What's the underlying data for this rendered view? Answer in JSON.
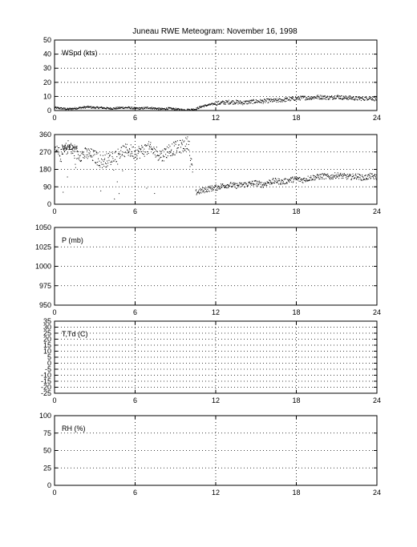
{
  "title": "Juneau RWE Meteogram:  November 16, 1998",
  "chart_data": [
    {
      "type": "scatter",
      "label": "WSpd (kts)",
      "xlim": [
        0,
        24
      ],
      "ylim": [
        0,
        50
      ],
      "xticks": [
        0,
        6,
        12,
        18,
        24
      ],
      "yticks": [
        0,
        10,
        20,
        30,
        40,
        50
      ],
      "grid": true,
      "series": [
        {
          "x": [
            0.0,
            0.5,
            1.0,
            1.5,
            2.0,
            2.5,
            3.0,
            3.5,
            4.0,
            4.5,
            5.0,
            5.5,
            6.0,
            6.5,
            7.0,
            7.5,
            8.0,
            8.5,
            9.0,
            9.5,
            10.0,
            10.5,
            11.0,
            11.5,
            12.0,
            12.5,
            13.0,
            13.5,
            14.0,
            14.5,
            15.0,
            15.5,
            16.0,
            16.5,
            17.0,
            17.5,
            18.0,
            18.5,
            19.0,
            19.5,
            20.0,
            20.5,
            21.0,
            21.5,
            22.0,
            22.5,
            23.0,
            23.5,
            24.0
          ],
          "y": [
            2,
            1.5,
            1,
            1.5,
            2,
            2.5,
            2,
            2,
            1.5,
            1.5,
            2,
            2,
            1.5,
            1.5,
            2,
            1.5,
            1,
            1.5,
            1,
            0.5,
            0.5,
            1,
            3,
            4,
            5,
            5.5,
            6,
            6,
            5.5,
            6,
            6.5,
            6.5,
            7,
            7,
            7.5,
            8,
            8.5,
            9,
            9,
            9.5,
            9.5,
            9,
            10,
            9,
            9,
            8.5,
            8.5,
            9,
            8
          ]
        }
      ]
    },
    {
      "type": "scatter",
      "label": "WDir",
      "xlim": [
        0,
        24
      ],
      "ylim": [
        0,
        360
      ],
      "xticks": [
        0,
        6,
        12,
        18,
        24
      ],
      "yticks": [
        0,
        90,
        180,
        270,
        360
      ],
      "grid": true,
      "series": [
        {
          "x": [
            0.0,
            0.5,
            1.0,
            1.5,
            2.0,
            2.5,
            3.0,
            3.5,
            4.0,
            4.5,
            5.0,
            5.5,
            6.0,
            6.5,
            7.0,
            7.5,
            8.0,
            8.5,
            9.0,
            9.5,
            10.0,
            10.5,
            11.0,
            11.5,
            12.0,
            12.5,
            13.0,
            13.5,
            14.0,
            14.5,
            15.0,
            15.5,
            16.0,
            16.5,
            17.0,
            17.5,
            18.0,
            18.5,
            19.0,
            19.5,
            20.0,
            20.5,
            21.0,
            21.5,
            22.0,
            22.5,
            23.0,
            23.5,
            24.0
          ],
          "y": [
            280,
            250,
            300,
            265,
            255,
            260,
            245,
            220,
            230,
            250,
            270,
            280,
            265,
            275,
            290,
            270,
            250,
            280,
            290,
            300,
            320,
            60,
            70,
            80,
            85,
            95,
            100,
            95,
            100,
            105,
            110,
            100,
            115,
            120,
            115,
            125,
            130,
            125,
            135,
            140,
            145,
            140,
            150,
            145,
            140,
            145,
            135,
            145,
            140
          ]
        }
      ]
    },
    {
      "type": "scatter",
      "label": "P (mb)",
      "xlim": [
        0,
        24
      ],
      "ylim": [
        950,
        1050
      ],
      "xticks": [
        0,
        6,
        12,
        18,
        24
      ],
      "yticks": [
        950,
        975,
        1000,
        1025,
        1050
      ],
      "grid": true,
      "series": []
    },
    {
      "type": "scatter",
      "label": "T,Td (C)",
      "xlim": [
        0,
        24
      ],
      "ylim": [
        -25,
        35
      ],
      "xticks": [
        0,
        6,
        12,
        18,
        24
      ],
      "yticks": [
        -25,
        -15,
        -5,
        5,
        15,
        25,
        35
      ],
      "ytick_labels": [
        "-25",
        "-15",
        "-5",
        "5",
        "15",
        "25",
        "35"
      ],
      "yticks_all": [
        -25,
        -20,
        -15,
        -10,
        -5,
        0,
        5,
        10,
        15,
        20,
        25,
        30,
        35
      ],
      "ytick_labels_all": [
        "-25",
        "-20",
        "-15",
        "-10",
        "-5",
        "0",
        "5",
        "10",
        "15",
        "20",
        "25",
        "30",
        "35"
      ],
      "grid": true,
      "series": []
    },
    {
      "type": "scatter",
      "label": "RH (%)",
      "xlim": [
        0,
        24
      ],
      "ylim": [
        0,
        100
      ],
      "xticks": [
        0,
        6,
        12,
        18,
        24
      ],
      "yticks": [
        0,
        25,
        50,
        75,
        100
      ],
      "grid": true,
      "series": []
    }
  ]
}
